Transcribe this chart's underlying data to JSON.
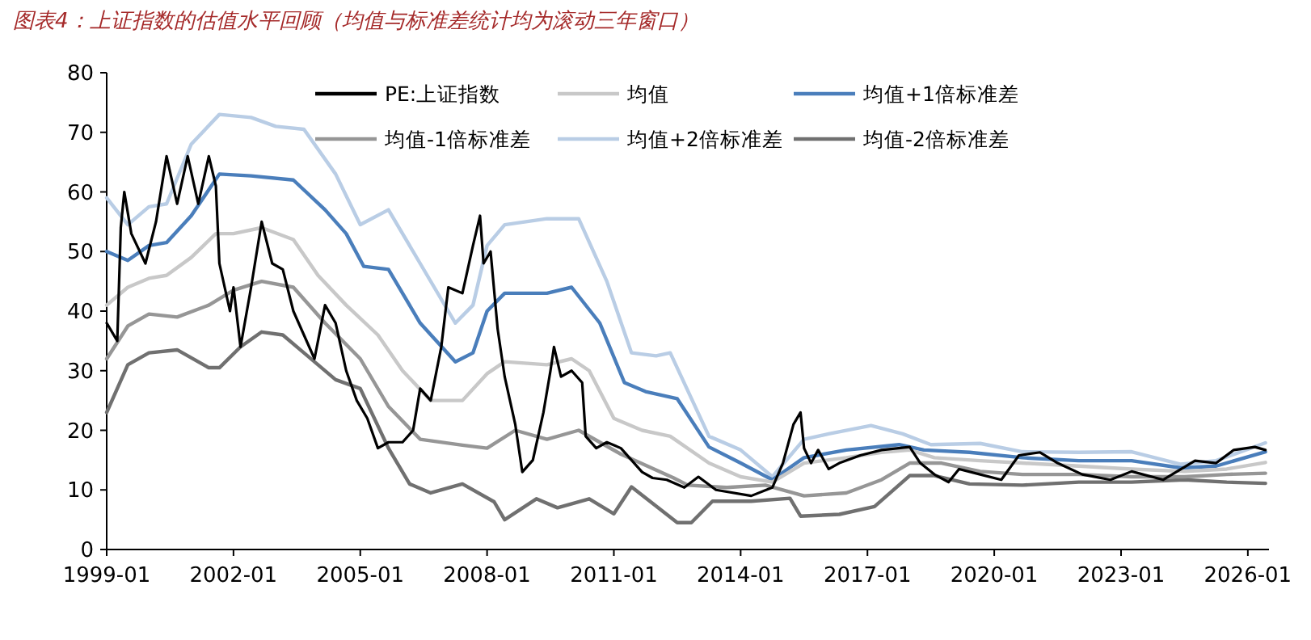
{
  "chart_data": {
    "type": "line",
    "title": "图表4：上证指数的估值水平回顾（均值与标准差统计均为滚动三年窗口）",
    "xlim": [
      "1999-01",
      "2026-07"
    ],
    "ylim": [
      0,
      80
    ],
    "xticks": [
      "1999-01",
      "2002-01",
      "2005-01",
      "2008-01",
      "2011-01",
      "2014-01",
      "2017-01",
      "2020-01",
      "2023-01",
      "2026-01"
    ],
    "yticks": [
      0,
      10,
      20,
      30,
      40,
      50,
      60,
      70,
      80
    ],
    "legend": "top right",
    "grid": false,
    "marker": "none",
    "line_style": "solid",
    "series": [
      {
        "name": "PE:上证指数",
        "color": "#000000",
        "x": [
          "1999-01",
          "1999-04",
          "1999-05",
          "1999-06",
          "1999-08",
          "1999-12",
          "2000-03",
          "2000-06",
          "2000-09",
          "2000-12",
          "2001-03",
          "2001-06",
          "2001-08",
          "2001-09",
          "2001-12",
          "2002-01",
          "2002-03",
          "2002-06",
          "2002-09",
          "2002-12",
          "2003-03",
          "2003-06",
          "2003-09",
          "2003-12",
          "2004-03",
          "2004-06",
          "2004-09",
          "2004-12",
          "2005-03",
          "2005-06",
          "2005-09",
          "2006-01",
          "2006-04",
          "2006-06",
          "2006-09",
          "2006-12",
          "2007-02",
          "2007-06",
          "2007-09",
          "2007-11",
          "2007-12",
          "2008-02",
          "2008-04",
          "2008-06",
          "2008-09",
          "2008-11",
          "2009-02",
          "2009-05",
          "2009-07",
          "2009-08",
          "2009-10",
          "2010-01",
          "2010-04",
          "2010-05",
          "2010-08",
          "2010-11",
          "2011-03",
          "2011-06",
          "2011-09",
          "2011-12",
          "2012-04",
          "2012-09",
          "2013-01",
          "2013-06",
          "2014-04",
          "2014-10",
          "2015-01",
          "2015-04",
          "2015-06",
          "2015-07",
          "2015-09",
          "2015-11",
          "2016-02",
          "2016-05",
          "2016-11",
          "2017-05",
          "2018-01",
          "2018-04",
          "2018-08",
          "2018-12",
          "2019-03",
          "2019-09",
          "2020-03",
          "2020-08",
          "2021-02",
          "2021-07",
          "2022-02",
          "2022-10",
          "2023-04",
          "2024-01",
          "2024-10",
          "2025-04",
          "2025-09",
          "2026-03",
          "2026-06"
        ],
        "values": [
          38,
          35,
          54,
          60,
          53,
          48,
          55,
          66,
          58,
          66,
          58,
          66,
          61,
          48,
          40,
          44,
          34,
          44,
          55,
          48,
          47,
          40,
          36,
          32,
          41,
          38,
          30,
          25,
          22,
          17,
          18,
          18,
          20,
          27,
          25,
          34,
          44,
          43,
          51,
          56,
          48,
          50,
          37,
          29,
          21,
          13,
          15,
          23,
          30,
          34,
          29,
          30,
          28,
          19,
          17,
          18,
          17,
          15,
          13,
          12,
          11.7,
          10.4,
          12.2,
          10,
          9,
          10.4,
          14.5,
          21,
          23,
          17,
          14.5,
          16.7,
          13.5,
          14.5,
          15.8,
          16.7,
          17.2,
          14.5,
          12.6,
          11.3,
          13.5,
          12.6,
          11.7,
          15.8,
          16.3,
          14.5,
          12.6,
          11.7,
          13.1,
          11.7,
          14.9,
          14.5,
          16.7,
          17.2,
          16.7
        ]
      },
      {
        "name": "均值",
        "color": "#c8c8c8",
        "x": [
          "1999-01",
          "1999-07",
          "2000-01",
          "2000-06",
          "2001-01",
          "2001-08",
          "2002-01",
          "2002-09",
          "2003-06",
          "2004-01",
          "2004-09",
          "2005-06",
          "2006-01",
          "2006-09",
          "2007-06",
          "2008-01",
          "2008-06",
          "2009-06",
          "2010-01",
          "2010-06",
          "2011-01",
          "2011-09",
          "2012-05",
          "2013-04",
          "2014-01",
          "2014-10",
          "2015-07",
          "2016-07",
          "2017-05",
          "2018-01",
          "2018-08",
          "2019-09",
          "2020-09",
          "2022-01",
          "2023-04",
          "2024-07",
          "2025-07",
          "2026-06"
        ],
        "values": [
          41,
          44,
          45.5,
          46,
          49,
          53,
          53,
          54,
          52,
          46,
          41,
          36,
          30,
          25,
          25,
          29.5,
          31.5,
          31,
          32,
          30,
          22,
          20,
          19,
          14.5,
          12.2,
          11.3,
          14.5,
          15.4,
          16.3,
          16.7,
          15.4,
          14.9,
          14.5,
          14,
          13.5,
          13.1,
          13.5,
          14.6
        ]
      },
      {
        "name": "均值+1倍标准差",
        "color": "#4a7ebb",
        "x": [
          "1999-01",
          "1999-07",
          "2000-01",
          "2000-06",
          "2001-01",
          "2001-09",
          "2002-06",
          "2003-06",
          "2004-03",
          "2004-09",
          "2005-02",
          "2005-09",
          "2006-06",
          "2007-04",
          "2007-09",
          "2008-01",
          "2008-06",
          "2009-06",
          "2010-01",
          "2010-09",
          "2011-04",
          "2011-10",
          "2012-07",
          "2013-04",
          "2014-01",
          "2014-10",
          "2015-07",
          "2016-07",
          "2017-10",
          "2018-05",
          "2019-06",
          "2020-09",
          "2022-01",
          "2023-04",
          "2024-06",
          "2025-04",
          "2026-06"
        ],
        "values": [
          50,
          48.5,
          51,
          51.5,
          56,
          63,
          62.7,
          62,
          57,
          53,
          47.5,
          47,
          38,
          31.5,
          33,
          40,
          43,
          43,
          44,
          38,
          28,
          26.5,
          25.3,
          17.2,
          14.5,
          11.7,
          15.4,
          16.7,
          17.6,
          16.7,
          16.3,
          15.4,
          14.9,
          14.9,
          13.7,
          14,
          16.4
        ]
      },
      {
        "name": "均值-1倍标准差",
        "color": "#969696",
        "x": [
          "1999-01",
          "1999-07",
          "2000-01",
          "2000-09",
          "2001-06",
          "2002-01",
          "2002-09",
          "2003-06",
          "2004-03",
          "2005-01",
          "2005-09",
          "2006-06",
          "2007-06",
          "2008-01",
          "2008-09",
          "2009-06",
          "2010-03",
          "2010-09",
          "2011-03",
          "2012-06",
          "2012-10",
          "2013-09",
          "2014-08",
          "2015-07",
          "2016-07",
          "2017-05",
          "2018-01",
          "2018-10",
          "2019-09",
          "2020-09",
          "2022-01",
          "2023-04",
          "2024-07",
          "2025-07",
          "2026-06"
        ],
        "values": [
          32,
          37.5,
          39.5,
          39,
          41,
          43.5,
          45,
          44,
          38,
          32,
          24,
          18.5,
          17.5,
          17,
          20,
          18.5,
          20,
          18,
          16,
          12,
          10.8,
          10.4,
          10.8,
          9,
          9.5,
          11.7,
          14.5,
          14.5,
          13.1,
          12.6,
          12.6,
          12.2,
          12.2,
          12.6,
          12.8
        ]
      },
      {
        "name": "均值+2倍标准差",
        "color": "#b9cde5",
        "x": [
          "1999-01",
          "1999-07",
          "2000-01",
          "2000-06",
          "2001-01",
          "2001-09",
          "2002-06",
          "2003-01",
          "2003-09",
          "2004-06",
          "2005-01",
          "2005-09",
          "2006-06",
          "2007-04",
          "2007-09",
          "2008-01",
          "2008-06",
          "2009-06",
          "2010-03",
          "2010-11",
          "2011-06",
          "2012-01",
          "2012-05",
          "2013-04",
          "2014-01",
          "2014-10",
          "2015-07",
          "2016-02",
          "2017-02",
          "2017-11",
          "2018-07",
          "2019-09",
          "2020-09",
          "2022-01",
          "2023-04",
          "2024-06",
          "2025-04",
          "2026-06"
        ],
        "values": [
          59,
          54.5,
          57.5,
          58,
          68,
          73,
          72.5,
          71,
          70.5,
          63,
          54.5,
          57,
          48,
          38,
          41,
          51,
          54.5,
          55.5,
          55.5,
          45,
          33,
          32.5,
          33,
          19,
          16.7,
          12.2,
          18.5,
          19.4,
          20.8,
          19.4,
          17.6,
          17.8,
          16.4,
          16.3,
          16.4,
          14.3,
          14.9,
          17.9
        ]
      },
      {
        "name": "均值-2倍标准差",
        "color": "#707070",
        "x": [
          "1999-01",
          "1999-07",
          "2000-01",
          "2000-09",
          "2001-06",
          "2001-09",
          "2002-03",
          "2002-09",
          "2003-03",
          "2003-09",
          "2004-06",
          "2005-01",
          "2005-09",
          "2006-03",
          "2006-09",
          "2007-06",
          "2008-03",
          "2008-06",
          "2009-03",
          "2009-09",
          "2010-06",
          "2011-01",
          "2011-06",
          "2012-07",
          "2012-11",
          "2013-05",
          "2014-04",
          "2015-03",
          "2015-06",
          "2016-05",
          "2017-03",
          "2018-01",
          "2018-08",
          "2019-06",
          "2020-09",
          "2022-01",
          "2023-04",
          "2024-07",
          "2025-07",
          "2026-06"
        ],
        "values": [
          23,
          31,
          33,
          33.5,
          30.5,
          30.5,
          34,
          36.5,
          36,
          33,
          28.5,
          27,
          17,
          11,
          9.5,
          11,
          8,
          5,
          8.5,
          7,
          8.5,
          6,
          10.5,
          4.5,
          4.5,
          8.1,
          8.1,
          8.6,
          5.6,
          5.9,
          7.2,
          12.4,
          12.4,
          11,
          10.8,
          11.3,
          11.3,
          11.7,
          11.3,
          11.1
        ]
      }
    ]
  }
}
